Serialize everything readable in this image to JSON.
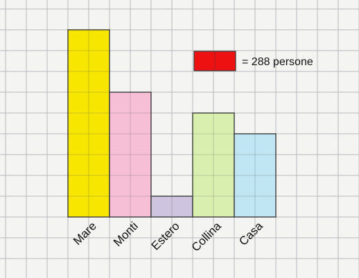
{
  "chart_data": {
    "type": "bar",
    "categories": [
      "Mare",
      "Monti",
      "Estero",
      "Collina",
      "Casa"
    ],
    "values": [
      9,
      6,
      1,
      5,
      4
    ],
    "colors": [
      "#f7e600",
      "#f6bfd6",
      "#cfc4e0",
      "#d9efb0",
      "#bfe6f2"
    ],
    "legend": {
      "swatch_color": "#ee1111",
      "text": "= 288 persone"
    },
    "grid": true
  }
}
